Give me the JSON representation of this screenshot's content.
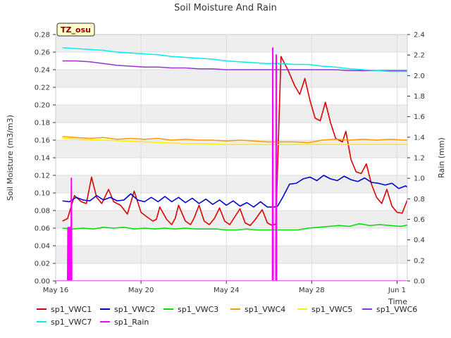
{
  "chart_data": {
    "type": "line",
    "title": "Soil Moisture And Rain",
    "ylabel": "Soil Moisture (m3/m3)",
    "y2label": "Rain (mm)",
    "xlabel": "Time",
    "badge": "TZ_osu",
    "ylim": [
      0,
      0.28
    ],
    "y2lim": [
      0,
      2.4
    ],
    "xlim": [
      0,
      20.6
    ],
    "yticks": [
      "0.00",
      "0.02",
      "0.04",
      "0.06",
      "0.08",
      "0.10",
      "0.12",
      "0.14",
      "0.16",
      "0.18",
      "0.20",
      "0.22",
      "0.24",
      "0.26",
      "0.28"
    ],
    "y2ticks": [
      "0.0",
      "0.2",
      "0.4",
      "0.6",
      "0.8",
      "1.0",
      "1.2",
      "1.4",
      "1.6",
      "1.8",
      "2.0",
      "2.2",
      "2.4"
    ],
    "xticks": [
      {
        "x": 0,
        "label": "May 16"
      },
      {
        "x": 5,
        "label": "May 20"
      },
      {
        "x": 10,
        "label": "May 24"
      },
      {
        "x": 15,
        "label": "May 28"
      },
      {
        "x": 20,
        "label": "Jun 1"
      }
    ],
    "grid": true,
    "legend_placement": "bottom",
    "series": [
      {
        "name": "sp1_VWC1",
        "color": "#dd0000",
        "axis": "left",
        "points": [
          [
            0.4,
            0.068
          ],
          [
            0.7,
            0.071
          ],
          [
            1.1,
            0.097
          ],
          [
            1.5,
            0.09
          ],
          [
            1.8,
            0.088
          ],
          [
            2.1,
            0.118
          ],
          [
            2.4,
            0.095
          ],
          [
            2.7,
            0.088
          ],
          [
            3.1,
            0.104
          ],
          [
            3.4,
            0.09
          ],
          [
            3.8,
            0.086
          ],
          [
            4.2,
            0.076
          ],
          [
            4.6,
            0.102
          ],
          [
            5.0,
            0.078
          ],
          [
            5.4,
            0.072
          ],
          [
            5.7,
            0.068
          ],
          [
            5.9,
            0.07
          ],
          [
            6.1,
            0.084
          ],
          [
            6.5,
            0.07
          ],
          [
            6.8,
            0.064
          ],
          [
            7.0,
            0.071
          ],
          [
            7.2,
            0.086
          ],
          [
            7.6,
            0.068
          ],
          [
            7.9,
            0.064
          ],
          [
            8.1,
            0.071
          ],
          [
            8.4,
            0.086
          ],
          [
            8.7,
            0.068
          ],
          [
            9.0,
            0.064
          ],
          [
            9.3,
            0.071
          ],
          [
            9.6,
            0.083
          ],
          [
            9.9,
            0.068
          ],
          [
            10.2,
            0.064
          ],
          [
            10.4,
            0.07
          ],
          [
            10.8,
            0.082
          ],
          [
            11.1,
            0.066
          ],
          [
            11.4,
            0.063
          ],
          [
            11.7,
            0.07
          ],
          [
            12.1,
            0.081
          ],
          [
            12.4,
            0.066
          ],
          [
            12.7,
            0.063
          ],
          [
            12.9,
            0.065
          ],
          [
            13.0,
            0.13
          ],
          [
            13.2,
            0.255
          ],
          [
            13.6,
            0.24
          ],
          [
            14.0,
            0.222
          ],
          [
            14.3,
            0.212
          ],
          [
            14.6,
            0.23
          ],
          [
            14.9,
            0.205
          ],
          [
            15.2,
            0.185
          ],
          [
            15.5,
            0.182
          ],
          [
            15.8,
            0.203
          ],
          [
            16.1,
            0.18
          ],
          [
            16.4,
            0.162
          ],
          [
            16.8,
            0.158
          ],
          [
            17.0,
            0.17
          ],
          [
            17.3,
            0.138
          ],
          [
            17.6,
            0.124
          ],
          [
            17.9,
            0.122
          ],
          [
            18.2,
            0.133
          ],
          [
            18.5,
            0.11
          ],
          [
            18.8,
            0.095
          ],
          [
            19.1,
            0.088
          ],
          [
            19.4,
            0.104
          ],
          [
            19.7,
            0.085
          ],
          [
            20.0,
            0.078
          ],
          [
            20.3,
            0.077
          ],
          [
            20.6,
            0.092
          ],
          [
            20.9,
            0.076
          ],
          [
            21.2,
            0.072
          ],
          [
            21.5,
            0.088
          ],
          [
            21.9,
            0.068
          ]
        ]
      },
      {
        "name": "sp1_VWC2",
        "color": "#0000cc",
        "axis": "left",
        "points": [
          [
            0.4,
            0.091
          ],
          [
            0.8,
            0.09
          ],
          [
            1.2,
            0.095
          ],
          [
            1.6,
            0.092
          ],
          [
            2.0,
            0.091
          ],
          [
            2.4,
            0.097
          ],
          [
            2.8,
            0.092
          ],
          [
            3.2,
            0.095
          ],
          [
            3.6,
            0.091
          ],
          [
            4.0,
            0.092
          ],
          [
            4.4,
            0.099
          ],
          [
            4.8,
            0.092
          ],
          [
            5.2,
            0.09
          ],
          [
            5.6,
            0.095
          ],
          [
            6.0,
            0.09
          ],
          [
            6.4,
            0.096
          ],
          [
            6.8,
            0.09
          ],
          [
            7.2,
            0.095
          ],
          [
            7.6,
            0.089
          ],
          [
            8.0,
            0.094
          ],
          [
            8.4,
            0.088
          ],
          [
            8.8,
            0.093
          ],
          [
            9.2,
            0.087
          ],
          [
            9.6,
            0.092
          ],
          [
            10.0,
            0.086
          ],
          [
            10.4,
            0.091
          ],
          [
            10.8,
            0.085
          ],
          [
            11.2,
            0.089
          ],
          [
            11.6,
            0.084
          ],
          [
            12.0,
            0.09
          ],
          [
            12.4,
            0.084
          ],
          [
            12.8,
            0.084
          ],
          [
            13.0,
            0.085
          ],
          [
            13.3,
            0.095
          ],
          [
            13.7,
            0.11
          ],
          [
            14.1,
            0.111
          ],
          [
            14.5,
            0.116
          ],
          [
            14.9,
            0.118
          ],
          [
            15.3,
            0.114
          ],
          [
            15.7,
            0.12
          ],
          [
            16.1,
            0.116
          ],
          [
            16.5,
            0.114
          ],
          [
            16.9,
            0.119
          ],
          [
            17.3,
            0.115
          ],
          [
            17.7,
            0.113
          ],
          [
            18.1,
            0.117
          ],
          [
            18.5,
            0.112
          ],
          [
            18.9,
            0.111
          ],
          [
            19.3,
            0.109
          ],
          [
            19.7,
            0.111
          ],
          [
            20.1,
            0.105
          ],
          [
            20.5,
            0.108
          ],
          [
            20.9,
            0.102
          ],
          [
            21.3,
            0.103
          ],
          [
            21.7,
            0.106
          ],
          [
            21.9,
            0.101
          ]
        ]
      },
      {
        "name": "sp1_VWC3",
        "color": "#00dd00",
        "axis": "left",
        "points": [
          [
            0.4,
            0.06
          ],
          [
            1.0,
            0.059
          ],
          [
            1.6,
            0.06
          ],
          [
            2.2,
            0.059
          ],
          [
            2.8,
            0.061
          ],
          [
            3.4,
            0.06
          ],
          [
            4.0,
            0.061
          ],
          [
            4.6,
            0.059
          ],
          [
            5.2,
            0.06
          ],
          [
            5.8,
            0.059
          ],
          [
            6.4,
            0.06
          ],
          [
            7.0,
            0.059
          ],
          [
            7.6,
            0.06
          ],
          [
            8.2,
            0.059
          ],
          [
            8.8,
            0.059
          ],
          [
            9.4,
            0.059
          ],
          [
            10.0,
            0.058
          ],
          [
            10.6,
            0.058
          ],
          [
            11.2,
            0.059
          ],
          [
            11.8,
            0.058
          ],
          [
            12.4,
            0.058
          ],
          [
            13.0,
            0.058
          ],
          [
            13.6,
            0.058
          ],
          [
            14.2,
            0.058
          ],
          [
            14.8,
            0.06
          ],
          [
            15.4,
            0.061
          ],
          [
            16.0,
            0.062
          ],
          [
            16.6,
            0.063
          ],
          [
            17.2,
            0.062
          ],
          [
            17.8,
            0.065
          ],
          [
            18.4,
            0.063
          ],
          [
            19.0,
            0.064
          ],
          [
            19.6,
            0.063
          ],
          [
            20.2,
            0.062
          ],
          [
            20.8,
            0.064
          ],
          [
            21.4,
            0.063
          ],
          [
            21.9,
            0.062
          ]
        ]
      },
      {
        "name": "sp1_VWC4",
        "color": "#ff9900",
        "axis": "left",
        "points": [
          [
            0.4,
            0.164
          ],
          [
            1.2,
            0.163
          ],
          [
            2.0,
            0.162
          ],
          [
            2.8,
            0.163
          ],
          [
            3.6,
            0.161
          ],
          [
            4.4,
            0.162
          ],
          [
            5.2,
            0.161
          ],
          [
            6.0,
            0.162
          ],
          [
            6.8,
            0.16
          ],
          [
            7.6,
            0.161
          ],
          [
            8.4,
            0.16
          ],
          [
            9.2,
            0.16
          ],
          [
            10.0,
            0.159
          ],
          [
            10.8,
            0.16
          ],
          [
            11.6,
            0.159
          ],
          [
            12.4,
            0.158
          ],
          [
            13.2,
            0.158
          ],
          [
            14.0,
            0.158
          ],
          [
            14.8,
            0.157
          ],
          [
            15.6,
            0.16
          ],
          [
            16.4,
            0.161
          ],
          [
            17.2,
            0.16
          ],
          [
            18.0,
            0.161
          ],
          [
            18.8,
            0.16
          ],
          [
            19.6,
            0.161
          ],
          [
            20.4,
            0.16
          ],
          [
            21.2,
            0.161
          ],
          [
            21.9,
            0.162
          ]
        ]
      },
      {
        "name": "sp1_VWC5",
        "color": "#ffee00",
        "axis": "left",
        "points": [
          [
            0.4,
            0.162
          ],
          [
            1.6,
            0.161
          ],
          [
            2.8,
            0.16
          ],
          [
            4.0,
            0.159
          ],
          [
            5.2,
            0.158
          ],
          [
            6.4,
            0.157
          ],
          [
            7.6,
            0.156
          ],
          [
            8.8,
            0.156
          ],
          [
            10.0,
            0.155
          ],
          [
            11.2,
            0.155
          ],
          [
            12.4,
            0.155
          ],
          [
            13.6,
            0.155
          ],
          [
            14.8,
            0.155
          ],
          [
            16.0,
            0.155
          ],
          [
            17.2,
            0.155
          ],
          [
            18.4,
            0.155
          ],
          [
            19.6,
            0.155
          ],
          [
            20.8,
            0.155
          ],
          [
            21.9,
            0.155
          ]
        ]
      },
      {
        "name": "sp1_VWC6",
        "color": "#9933cc",
        "axis": "left",
        "points": [
          [
            0.4,
            0.25
          ],
          [
            1.2,
            0.25
          ],
          [
            2.0,
            0.249
          ],
          [
            2.8,
            0.247
          ],
          [
            3.6,
            0.245
          ],
          [
            4.4,
            0.244
          ],
          [
            5.2,
            0.243
          ],
          [
            6.0,
            0.243
          ],
          [
            6.8,
            0.242
          ],
          [
            7.6,
            0.242
          ],
          [
            8.4,
            0.241
          ],
          [
            9.2,
            0.241
          ],
          [
            10.0,
            0.24
          ],
          [
            10.8,
            0.24
          ],
          [
            11.6,
            0.24
          ],
          [
            12.4,
            0.24
          ],
          [
            13.2,
            0.24
          ],
          [
            14.0,
            0.24
          ],
          [
            14.8,
            0.24
          ],
          [
            15.6,
            0.24
          ],
          [
            16.4,
            0.24
          ],
          [
            17.2,
            0.239
          ],
          [
            18.0,
            0.239
          ],
          [
            18.8,
            0.239
          ],
          [
            19.6,
            0.239
          ],
          [
            20.4,
            0.239
          ],
          [
            21.2,
            0.239
          ],
          [
            21.9,
            0.238
          ]
        ]
      },
      {
        "name": "sp1_VWC7",
        "color": "#00eeee",
        "axis": "left",
        "points": [
          [
            0.4,
            0.265
          ],
          [
            1.2,
            0.264
          ],
          [
            2.0,
            0.263
          ],
          [
            2.8,
            0.262
          ],
          [
            3.6,
            0.26
          ],
          [
            4.4,
            0.259
          ],
          [
            5.2,
            0.258
          ],
          [
            6.0,
            0.257
          ],
          [
            6.8,
            0.255
          ],
          [
            7.6,
            0.254
          ],
          [
            8.4,
            0.253
          ],
          [
            9.2,
            0.252
          ],
          [
            10.0,
            0.25
          ],
          [
            10.8,
            0.249
          ],
          [
            11.6,
            0.248
          ],
          [
            12.4,
            0.247
          ],
          [
            13.2,
            0.247
          ],
          [
            14.0,
            0.246
          ],
          [
            14.8,
            0.246
          ],
          [
            15.6,
            0.244
          ],
          [
            16.4,
            0.243
          ],
          [
            17.2,
            0.241
          ],
          [
            18.0,
            0.24
          ],
          [
            18.8,
            0.239
          ],
          [
            19.6,
            0.238
          ],
          [
            20.4,
            0.238
          ],
          [
            21.2,
            0.238
          ],
          [
            21.9,
            0.237
          ]
        ]
      },
      {
        "name": "sp1_Rain",
        "color": "#ff00ff",
        "axis": "right",
        "points": [
          [
            0.0,
            0.0
          ],
          [
            0.7,
            0.0
          ],
          [
            0.72,
            0.52
          ],
          [
            0.74,
            0.0
          ],
          [
            0.76,
            0.52
          ],
          [
            0.78,
            0.0
          ],
          [
            0.8,
            0.52
          ],
          [
            0.82,
            0.0
          ],
          [
            0.84,
            0.52
          ],
          [
            0.86,
            0.0
          ],
          [
            0.88,
            0.52
          ],
          [
            0.9,
            0.0
          ],
          [
            0.92,
            1.0
          ],
          [
            0.94,
            0.0
          ],
          [
            12.7,
            0.0
          ],
          [
            12.72,
            2.27
          ],
          [
            12.74,
            0.0
          ],
          [
            12.9,
            0.0
          ],
          [
            12.92,
            2.2
          ],
          [
            12.94,
            0.0
          ],
          [
            21.9,
            0.0
          ]
        ]
      }
    ]
  }
}
